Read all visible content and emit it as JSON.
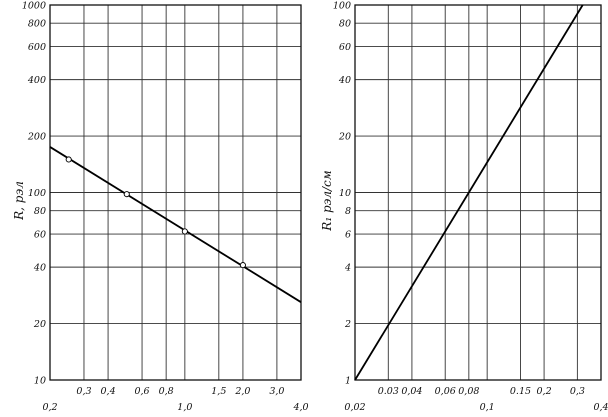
{
  "chart_data": [
    {
      "type": "line",
      "xscale": "log",
      "yscale": "log",
      "xlim": [
        0.2,
        4.0
      ],
      "ylim": [
        10,
        1000
      ],
      "ylabel": "R, рэл",
      "xlabel": "",
      "grid": true,
      "x_ticks": [
        {
          "value": 0.2,
          "label": "0,2",
          "row": "lower"
        },
        {
          "value": 0.3,
          "label": "0,3",
          "row": "upper"
        },
        {
          "value": 0.4,
          "label": "0,4",
          "row": "upper"
        },
        {
          "value": 0.6,
          "label": "0,6",
          "row": "upper"
        },
        {
          "value": 0.8,
          "label": "0,8",
          "row": "upper"
        },
        {
          "value": 1.0,
          "label": "1,0",
          "row": "lower"
        },
        {
          "value": 1.5,
          "label": "1,5",
          "row": "upper"
        },
        {
          "value": 2.0,
          "label": "2,0",
          "row": "upper"
        },
        {
          "value": 3.0,
          "label": "3,0",
          "row": "upper"
        },
        {
          "value": 4.0,
          "label": "4,0",
          "row": "lower"
        }
      ],
      "y_ticks": [
        {
          "value": 10,
          "label": "10"
        },
        {
          "value": 20,
          "label": "20"
        },
        {
          "value": 40,
          "label": "40"
        },
        {
          "value": 60,
          "label": "60"
        },
        {
          "value": 80,
          "label": "80"
        },
        {
          "value": 100,
          "label": "100"
        },
        {
          "value": 200,
          "label": "200"
        },
        {
          "value": 400,
          "label": "400"
        },
        {
          "value": 600,
          "label": "600"
        },
        {
          "value": 800,
          "label": "800"
        },
        {
          "value": 1000,
          "label": "1000"
        }
      ],
      "series": [
        {
          "line": [
            [
              0.2,
              175
            ],
            [
              4.0,
              26
            ]
          ],
          "points": [
            [
              0.25,
              150
            ],
            [
              0.5,
              98
            ],
            [
              1.0,
              62
            ],
            [
              2.0,
              41
            ]
          ]
        }
      ]
    },
    {
      "type": "line",
      "xscale": "log",
      "yscale": "log",
      "xlim": [
        0.02,
        0.4
      ],
      "ylim": [
        1,
        100
      ],
      "ylabel": "R₁ рэл/см",
      "xlabel": "",
      "grid": true,
      "x_ticks": [
        {
          "value": 0.02,
          "label": "0,02",
          "row": "lower"
        },
        {
          "value": 0.03,
          "label": "0.03",
          "row": "upper"
        },
        {
          "value": 0.04,
          "label": "0,04",
          "row": "upper"
        },
        {
          "value": 0.06,
          "label": "0,06",
          "row": "upper"
        },
        {
          "value": 0.08,
          "label": "0,08",
          "row": "upper"
        },
        {
          "value": 0.1,
          "label": "0,1",
          "row": "lower"
        },
        {
          "value": 0.15,
          "label": "0.15",
          "row": "upper"
        },
        {
          "value": 0.2,
          "label": "0,2",
          "row": "upper"
        },
        {
          "value": 0.3,
          "label": "0,3",
          "row": "upper"
        },
        {
          "value": 0.4,
          "label": "0,4",
          "row": "lower"
        }
      ],
      "y_ticks": [
        {
          "value": 1,
          "label": "1"
        },
        {
          "value": 2,
          "label": "2"
        },
        {
          "value": 4,
          "label": "4"
        },
        {
          "value": 6,
          "label": "6"
        },
        {
          "value": 8,
          "label": "8"
        },
        {
          "value": 10,
          "label": "10"
        },
        {
          "value": 20,
          "label": "20"
        },
        {
          "value": 40,
          "label": "40"
        },
        {
          "value": 60,
          "label": "60"
        },
        {
          "value": 80,
          "label": "80"
        },
        {
          "value": 100,
          "label": "100"
        }
      ],
      "series": [
        {
          "line": [
            [
              0.02,
              1
            ],
            [
              0.32,
              100
            ]
          ],
          "points": []
        }
      ]
    }
  ]
}
